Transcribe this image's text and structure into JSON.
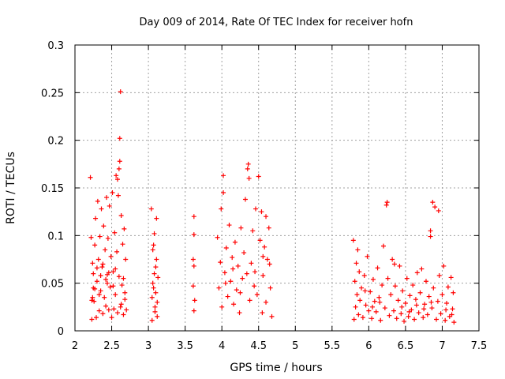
{
  "chart_data": {
    "type": "scatter",
    "title": "Day 009 of 2014, Rate Of TEC Index for receiver hofn",
    "xlabel": "GPS time / hours",
    "ylabel": "ROTI / TECUs",
    "xlim": [
      2,
      7.5
    ],
    "ylim": [
      0,
      0.3
    ],
    "xticks": [
      2,
      2.5,
      3,
      3.5,
      4,
      4.5,
      5,
      5.5,
      6,
      6.5,
      7,
      7.5
    ],
    "xtick_labels": [
      "2",
      "2.5",
      "3",
      "3.5",
      "4",
      "4.5",
      "5",
      "5.5",
      "6",
      "6.5",
      "7",
      "7.5"
    ],
    "yticks": [
      0,
      0.05,
      0.1,
      0.15,
      0.2,
      0.25,
      0.3
    ],
    "ytick_labels": [
      "0",
      "0.05",
      "0.1",
      "0.15",
      "0.2",
      "0.25",
      "0.3"
    ],
    "grid": true,
    "marker": "+",
    "series": [
      {
        "name": "ROTI",
        "color": "#ff0000",
        "points": [
          [
            2.21,
            0.161
          ],
          [
            2.22,
            0.098
          ],
          [
            2.23,
            0.012
          ],
          [
            2.24,
            0.035
          ],
          [
            2.25,
            0.06
          ],
          [
            2.26,
            0.031
          ],
          [
            2.27,
            0.09
          ],
          [
            2.28,
            0.118
          ],
          [
            2.29,
            0.014
          ],
          [
            2.3,
            0.052
          ],
          [
            2.31,
            0.136
          ],
          [
            2.32,
            0.075
          ],
          [
            2.33,
            0.021
          ],
          [
            2.34,
            0.099
          ],
          [
            2.35,
            0.042
          ],
          [
            2.36,
            0.128
          ],
          [
            2.37,
            0.067
          ],
          [
            2.38,
            0.018
          ],
          [
            2.39,
            0.11
          ],
          [
            2.4,
            0.035
          ],
          [
            2.41,
            0.085
          ],
          [
            2.42,
            0.026
          ],
          [
            2.43,
            0.14
          ],
          [
            2.44,
            0.059
          ],
          [
            2.45,
            0.097
          ],
          [
            2.46,
            0.022
          ],
          [
            2.47,
            0.131
          ],
          [
            2.48,
            0.046
          ],
          [
            2.49,
            0.078
          ],
          [
            2.5,
            0.014
          ],
          [
            2.51,
            0.145
          ],
          [
            2.52,
            0.062
          ],
          [
            2.53,
            0.023
          ],
          [
            2.54,
            0.103
          ],
          [
            2.55,
            0.038
          ],
          [
            2.56,
            0.163
          ],
          [
            2.57,
            0.083
          ],
          [
            2.58,
            0.019
          ],
          [
            2.59,
            0.142
          ],
          [
            2.6,
            0.057
          ],
          [
            2.61,
            0.178
          ],
          [
            2.62,
            0.025
          ],
          [
            2.63,
            0.121
          ],
          [
            2.64,
            0.048
          ],
          [
            2.65,
            0.091
          ],
          [
            2.66,
            0.017
          ],
          [
            2.67,
            0.107
          ],
          [
            2.68,
            0.04
          ],
          [
            2.69,
            0.075
          ],
          [
            2.7,
            0.022
          ],
          [
            2.62,
            0.251
          ],
          [
            2.61,
            0.202
          ],
          [
            2.6,
            0.17
          ],
          [
            2.58,
            0.159
          ],
          [
            2.23,
            0.032
          ],
          [
            2.27,
            0.044
          ],
          [
            2.35,
            0.058
          ],
          [
            2.44,
            0.05
          ],
          [
            2.52,
            0.047
          ],
          [
            2.66,
            0.055
          ],
          [
            2.24,
            0.071
          ],
          [
            2.3,
            0.066
          ],
          [
            2.38,
            0.07
          ],
          [
            2.46,
            0.061
          ],
          [
            2.55,
            0.065
          ],
          [
            2.63,
            0.028
          ],
          [
            2.68,
            0.033
          ],
          [
            2.25,
            0.045
          ],
          [
            2.33,
            0.038
          ],
          [
            2.42,
            0.054
          ],
          [
            3.04,
            0.128
          ],
          [
            3.05,
            0.011
          ],
          [
            3.06,
            0.085
          ],
          [
            3.07,
            0.045
          ],
          [
            3.08,
            0.102
          ],
          [
            3.09,
            0.025
          ],
          [
            3.1,
            0.067
          ],
          [
            3.11,
            0.118
          ],
          [
            3.12,
            0.015
          ],
          [
            3.13,
            0.056
          ],
          [
            3.05,
            0.035
          ],
          [
            3.07,
            0.09
          ],
          [
            3.09,
            0.02
          ],
          [
            3.11,
            0.075
          ],
          [
            3.06,
            0.05
          ],
          [
            3.1,
            0.04
          ],
          [
            3.12,
            0.03
          ],
          [
            3.08,
            0.06
          ],
          [
            3.62,
            0.12
          ],
          [
            3.62,
            0.101
          ],
          [
            3.61,
            0.075
          ],
          [
            3.62,
            0.068
          ],
          [
            3.61,
            0.047
          ],
          [
            3.63,
            0.032
          ],
          [
            3.62,
            0.021
          ],
          [
            3.94,
            0.098
          ],
          [
            3.96,
            0.045
          ],
          [
            3.98,
            0.072
          ],
          [
            4.0,
            0.025
          ],
          [
            4.02,
            0.145
          ],
          [
            4.04,
            0.061
          ],
          [
            4.06,
            0.087
          ],
          [
            4.08,
            0.036
          ],
          [
            4.1,
            0.111
          ],
          [
            4.12,
            0.052
          ],
          [
            4.14,
            0.077
          ],
          [
            4.16,
            0.028
          ],
          [
            4.18,
            0.093
          ],
          [
            4.2,
            0.043
          ],
          [
            4.22,
            0.068
          ],
          [
            4.24,
            0.019
          ],
          [
            4.26,
            0.108
          ],
          [
            4.28,
            0.055
          ],
          [
            4.3,
            0.082
          ],
          [
            4.32,
            0.138
          ],
          [
            4.34,
            0.06
          ],
          [
            4.36,
            0.175
          ],
          [
            4.38,
            0.032
          ],
          [
            4.4,
            0.071
          ],
          [
            4.42,
            0.105
          ],
          [
            4.44,
            0.047
          ],
          [
            4.46,
            0.128
          ],
          [
            4.48,
            0.038
          ],
          [
            4.5,
            0.162
          ],
          [
            4.52,
            0.095
          ],
          [
            4.54,
            0.125
          ],
          [
            4.56,
            0.058
          ],
          [
            4.58,
            0.088
          ],
          [
            4.6,
            0.03
          ],
          [
            4.62,
            0.075
          ],
          [
            4.64,
            0.108
          ],
          [
            4.66,
            0.045
          ],
          [
            4.68,
            0.015
          ],
          [
            4.55,
            0.019
          ],
          [
            4.6,
            0.12
          ],
          [
            4.02,
            0.163
          ],
          [
            3.99,
            0.128
          ],
          [
            4.35,
            0.17
          ],
          [
            4.37,
            0.16
          ],
          [
            4.05,
            0.05
          ],
          [
            4.15,
            0.065
          ],
          [
            4.25,
            0.04
          ],
          [
            4.45,
            0.062
          ],
          [
            4.65,
            0.07
          ],
          [
            4.56,
            0.078
          ],
          [
            5.79,
            0.095
          ],
          [
            5.8,
            0.012
          ],
          [
            5.81,
            0.052
          ],
          [
            5.82,
            0.025
          ],
          [
            5.83,
            0.071
          ],
          [
            5.84,
            0.038
          ],
          [
            5.85,
            0.085
          ],
          [
            5.86,
            0.017
          ],
          [
            5.87,
            0.062
          ],
          [
            5.88,
            0.032
          ],
          [
            5.9,
            0.045
          ],
          [
            5.92,
            0.014
          ],
          [
            5.94,
            0.058
          ],
          [
            5.96,
            0.027
          ],
          [
            5.98,
            0.078
          ],
          [
            6.0,
            0.021
          ],
          [
            6.02,
            0.041
          ],
          [
            6.04,
            0.013
          ],
          [
            6.06,
            0.054
          ],
          [
            6.08,
            0.031
          ],
          [
            6.1,
            0.02
          ],
          [
            6.12,
            0.066
          ],
          [
            6.14,
            0.035
          ],
          [
            6.16,
            0.011
          ],
          [
            6.18,
            0.048
          ],
          [
            6.2,
            0.089
          ],
          [
            6.22,
            0.024
          ],
          [
            6.24,
            0.132
          ],
          [
            6.26,
            0.055
          ],
          [
            6.28,
            0.016
          ],
          [
            6.3,
            0.038
          ],
          [
            6.32,
            0.075
          ],
          [
            6.34,
            0.021
          ],
          [
            6.36,
            0.047
          ],
          [
            6.38,
            0.013
          ],
          [
            6.4,
            0.032
          ],
          [
            6.42,
            0.068
          ],
          [
            6.44,
            0.018
          ],
          [
            6.46,
            0.042
          ],
          [
            6.48,
            0.01
          ],
          [
            6.5,
            0.029
          ],
          [
            6.52,
            0.055
          ],
          [
            6.54,
            0.015
          ],
          [
            6.56,
            0.037
          ],
          [
            6.58,
            0.022
          ],
          [
            6.6,
            0.048
          ],
          [
            6.62,
            0.012
          ],
          [
            6.64,
            0.033
          ],
          [
            6.66,
            0.061
          ],
          [
            6.68,
            0.019
          ],
          [
            6.7,
            0.04
          ],
          [
            6.72,
            0.065
          ],
          [
            6.74,
            0.014
          ],
          [
            6.76,
            0.028
          ],
          [
            6.78,
            0.052
          ],
          [
            6.8,
            0.017
          ],
          [
            6.82,
            0.036
          ],
          [
            6.84,
            0.099
          ],
          [
            6.86,
            0.024
          ],
          [
            6.88,
            0.045
          ],
          [
            6.9,
            0.13
          ],
          [
            6.92,
            0.012
          ],
          [
            6.94,
            0.031
          ],
          [
            6.96,
            0.058
          ],
          [
            6.98,
            0.018
          ],
          [
            7.0,
            0.038
          ],
          [
            7.02,
            0.068
          ],
          [
            7.04,
            0.011
          ],
          [
            7.06,
            0.029
          ],
          [
            7.08,
            0.046
          ],
          [
            7.1,
            0.015
          ],
          [
            7.12,
            0.056
          ],
          [
            7.14,
            0.023
          ],
          [
            7.15,
            0.04
          ],
          [
            7.16,
            0.009
          ],
          [
            6.87,
            0.135
          ],
          [
            6.95,
            0.126
          ],
          [
            6.25,
            0.135
          ],
          [
            6.84,
            0.105
          ],
          [
            6.35,
            0.07
          ],
          [
            5.95,
            0.042
          ],
          [
            6.05,
            0.025
          ],
          [
            6.15,
            0.03
          ],
          [
            6.45,
            0.025
          ],
          [
            6.55,
            0.02
          ],
          [
            6.65,
            0.027
          ],
          [
            6.75,
            0.023
          ],
          [
            6.85,
            0.03
          ],
          [
            7.05,
            0.022
          ],
          [
            7.13,
            0.017
          ]
        ]
      }
    ]
  }
}
